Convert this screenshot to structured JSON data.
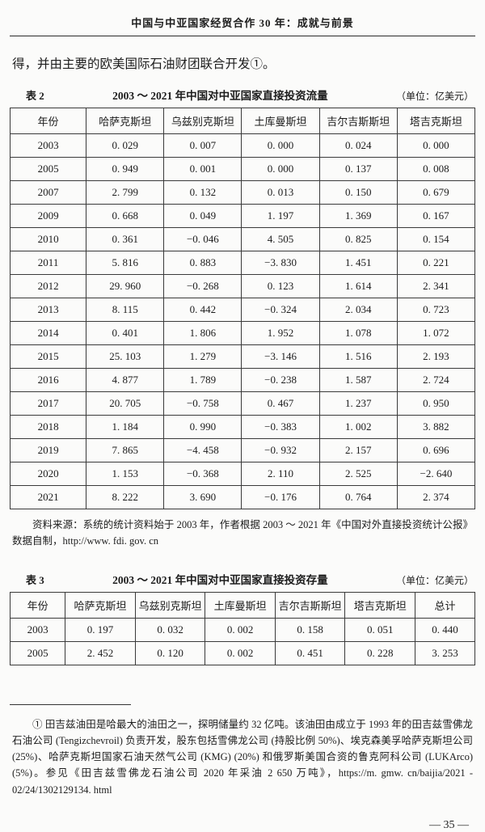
{
  "page": {
    "running_head": "中国与中亚国家经贸合作 30 年：成就与前景",
    "intro_text": "得，并由主要的欧美国际石油财团联合开发①。",
    "page_number": "— 35 —"
  },
  "table2": {
    "label": "表 2",
    "title": "2003 ～ 2021 年中国对中亚国家直接投资流量",
    "unit": "（单位：亿美元）",
    "columns": [
      "年份",
      "哈萨克斯坦",
      "乌兹别克斯坦",
      "土库曼斯坦",
      "吉尔吉斯斯坦",
      "塔吉克斯坦"
    ],
    "rows": [
      [
        "2003",
        "0. 029",
        "0. 007",
        "0. 000",
        "0. 024",
        "0. 000"
      ],
      [
        "2005",
        "0. 949",
        "0. 001",
        "0. 000",
        "0. 137",
        "0. 008"
      ],
      [
        "2007",
        "2. 799",
        "0. 132",
        "0. 013",
        "0. 150",
        "0. 679"
      ],
      [
        "2009",
        "0. 668",
        "0. 049",
        "1. 197",
        "1. 369",
        "0. 167"
      ],
      [
        "2010",
        "0. 361",
        "−0. 046",
        "4. 505",
        "0. 825",
        "0. 154"
      ],
      [
        "2011",
        "5. 816",
        "0. 883",
        "−3. 830",
        "1. 451",
        "0. 221"
      ],
      [
        "2012",
        "29. 960",
        "−0. 268",
        "0. 123",
        "1. 614",
        "2. 341"
      ],
      [
        "2013",
        "8. 115",
        "0. 442",
        "−0. 324",
        "2. 034",
        "0. 723"
      ],
      [
        "2014",
        "0. 401",
        "1. 806",
        "1. 952",
        "1. 078",
        "1. 072"
      ],
      [
        "2015",
        "25. 103",
        "1. 279",
        "−3. 146",
        "1. 516",
        "2. 193"
      ],
      [
        "2016",
        "4. 877",
        "1. 789",
        "−0. 238",
        "1. 587",
        "2. 724"
      ],
      [
        "2017",
        "20. 705",
        "−0. 758",
        "0. 467",
        "1. 237",
        "0. 950"
      ],
      [
        "2018",
        "1. 184",
        "0. 990",
        "−0. 383",
        "1. 002",
        "3. 882"
      ],
      [
        "2019",
        "7. 865",
        "−4. 458",
        "−0. 932",
        "2. 157",
        "0. 696"
      ],
      [
        "2020",
        "1. 153",
        "−0. 368",
        "2. 110",
        "2. 525",
        "−2. 640"
      ],
      [
        "2021",
        "8. 222",
        "3. 690",
        "−0. 176",
        "0. 764",
        "2. 374"
      ]
    ],
    "source_note": "资料来源：系统的统计资料始于 2003 年，作者根据 2003 ～ 2021 年《中国对外直接投资统计公报》数据自制，http://www. fdi. gov. cn"
  },
  "table3": {
    "label": "表 3",
    "title": "2003 ～ 2021 年中国对中亚国家直接投资存量",
    "unit": "（单位：亿美元）",
    "columns": [
      "年份",
      "哈萨克斯坦",
      "乌兹别克斯坦",
      "土库曼斯坦",
      "吉尔吉斯斯坦",
      "塔吉克斯坦",
      "总计"
    ],
    "rows": [
      [
        "2003",
        "0. 197",
        "0. 032",
        "0. 002",
        "0. 158",
        "0. 051",
        "0. 440"
      ],
      [
        "2005",
        "2. 452",
        "0. 120",
        "0. 002",
        "0. 451",
        "0. 228",
        "3. 253"
      ]
    ]
  },
  "footnote": {
    "text": "① 田吉兹油田是哈最大的油田之一，探明储量约 32 亿吨。该油田由成立于 1993 年的田吉兹雪佛龙石油公司 (Tengizchevroil) 负责开发，股东包括雪佛龙公司 (持股比例 50%)、埃克森美孚哈萨克斯坦公司 (25%)、哈萨克斯坦国家石油天然气公司 (KMG) (20%) 和俄罗斯美国合资的鲁克阿科公司 (LUKArco) (5%)。参见《田吉兹雪佛龙石油公司 2020 年采油 2 650 万吨》，https://m. gmw. cn/baijia/2021 - 02/24/1302129134. html"
  }
}
